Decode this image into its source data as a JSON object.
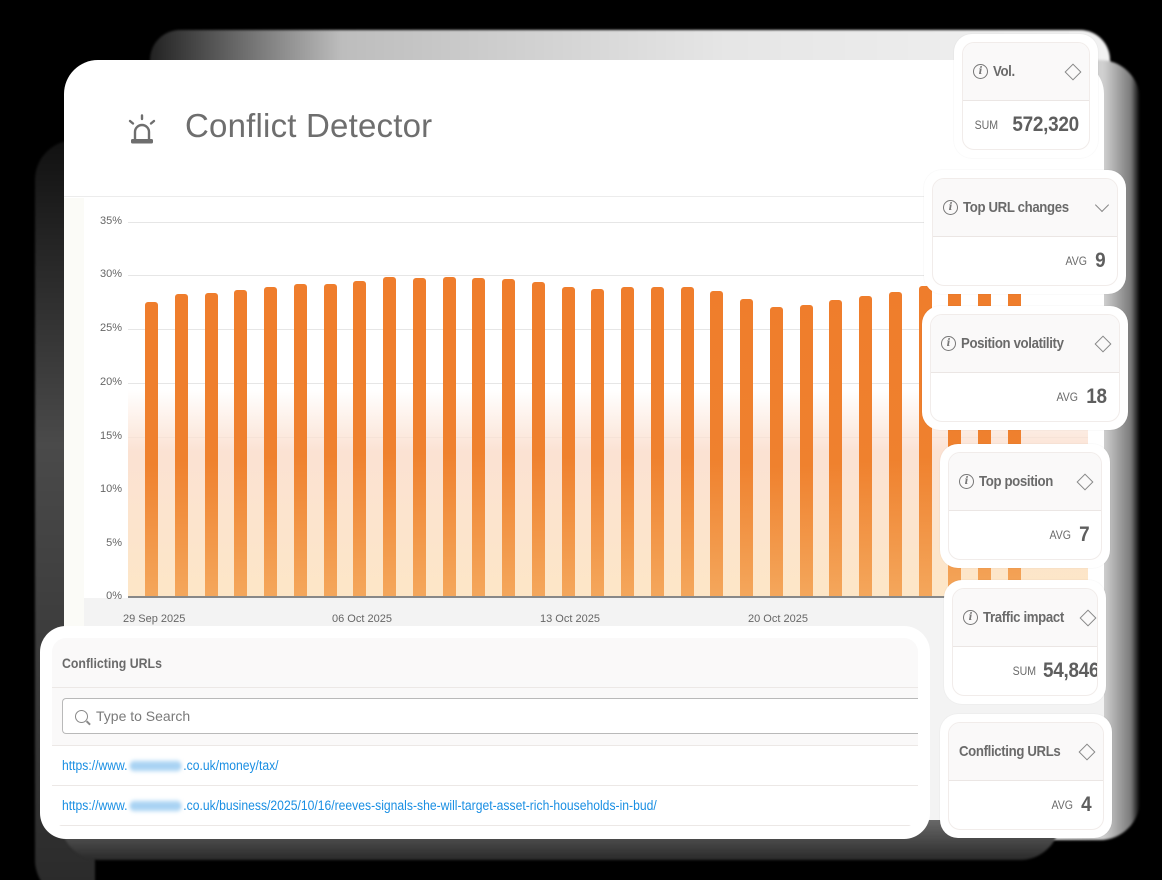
{
  "header": {
    "title": "Conflict Detector",
    "icon": "siren-icon"
  },
  "chart": {
    "y_ticks": [
      "35%",
      "30%",
      "25%",
      "20%",
      "15%",
      "10%",
      "5%",
      "0%"
    ],
    "x_ticks": [
      "29 Sep 2025",
      "06 Oct 2025",
      "13 Oct 2025",
      "20 Oct 2025"
    ],
    "bar_color": "#EF7D2C"
  },
  "chart_data": {
    "type": "bar",
    "title": "Conflict Detector",
    "xlabel": "",
    "ylabel": "",
    "ylim": [
      0,
      35
    ],
    "y_unit": "%",
    "grid": true,
    "categories": [
      "29 Sep 2025",
      "30 Sep 2025",
      "01 Oct 2025",
      "02 Oct 2025",
      "03 Oct 2025",
      "04 Oct 2025",
      "05 Oct 2025",
      "06 Oct 2025",
      "07 Oct 2025",
      "08 Oct 2025",
      "09 Oct 2025",
      "10 Oct 2025",
      "11 Oct 2025",
      "12 Oct 2025",
      "13 Oct 2025",
      "14 Oct 2025",
      "15 Oct 2025",
      "16 Oct 2025",
      "17 Oct 2025",
      "18 Oct 2025",
      "19 Oct 2025",
      "20 Oct 2025",
      "21 Oct 2025",
      "22 Oct 2025",
      "23 Oct 2025",
      "24 Oct 2025",
      "25 Oct 2025",
      "26 Oct 2025",
      "27 Oct 2025",
      "28 Oct 2025"
    ],
    "values": [
      27.5,
      28.3,
      28.4,
      28.7,
      28.9,
      29.2,
      29.2,
      29.5,
      29.9,
      29.8,
      29.9,
      29.8,
      29.7,
      29.4,
      28.9,
      28.8,
      28.9,
      28.9,
      28.9,
      28.6,
      27.8,
      27.1,
      27.3,
      27.7,
      28.1,
      28.5,
      29.0,
      29.1,
      29.1,
      29.1
    ],
    "x_tick_labels": [
      "29 Sep 2025",
      "06 Oct 2025",
      "13 Oct 2025",
      "20 Oct 2025"
    ],
    "y_tick_labels": [
      "0%",
      "5%",
      "10%",
      "15%",
      "20%",
      "25%",
      "30%",
      "35%"
    ]
  },
  "metrics": [
    {
      "label": "Vol.",
      "agg": "SUM",
      "value": "572,320",
      "icon": "sort-icon"
    },
    {
      "label": "Top URL changes",
      "agg": "AVG",
      "value": "9",
      "icon": "chevron-down-icon"
    },
    {
      "label": "Position volatility",
      "agg": "AVG",
      "value": "18",
      "icon": "sort-icon"
    },
    {
      "label": "Top position",
      "agg": "AVG",
      "value": "7",
      "icon": "sort-icon"
    },
    {
      "label": "Traffic impact",
      "agg": "SUM",
      "value": "54,846",
      "icon": "sort-icon"
    },
    {
      "label": "Conflicting URLs",
      "agg": "AVG",
      "value": "4",
      "icon": "sort-icon"
    }
  ],
  "urls_panel": {
    "title": "Conflicting URLs",
    "search_placeholder": "Type to Search",
    "rows": [
      {
        "prefix": "https://www.",
        "suffix": ".co.uk/money/tax/"
      },
      {
        "prefix": "https://www.",
        "suffix": ".co.uk/business/2025/10/16/reeves-signals-she-will-target-asset-rich-households-in-bud/"
      }
    ]
  }
}
